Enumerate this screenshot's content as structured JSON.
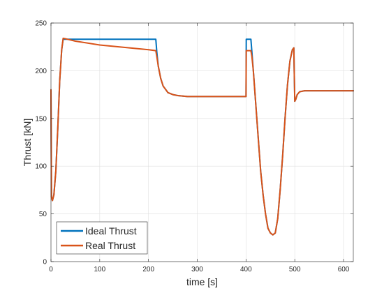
{
  "chart_data": {
    "type": "line",
    "title": "",
    "xlabel": "time [s]",
    "ylabel": "Thrust [kN]",
    "xlim": [
      0,
      620
    ],
    "ylim": [
      0,
      250
    ],
    "xticks": [
      0,
      100,
      200,
      300,
      400,
      500,
      600
    ],
    "yticks": [
      0,
      50,
      100,
      150,
      200,
      250
    ],
    "grid": true,
    "legend_position": "bottom-left",
    "series": [
      {
        "name": "Ideal Thrust",
        "color": "#0072BD",
        "x": [
          0,
          1,
          3,
          6,
          10,
          14,
          18,
          22,
          25,
          26,
          50,
          100,
          150,
          200,
          215,
          217,
          220,
          225,
          230,
          240,
          250,
          260,
          280,
          300,
          350,
          399,
          400,
          400.5,
          410,
          412,
          415,
          420,
          425,
          430,
          435,
          440,
          445,
          450,
          455,
          460,
          465,
          470,
          475,
          480,
          485,
          490,
          495,
          498,
          500,
          502,
          505,
          510,
          520,
          540,
          560,
          580,
          600,
          620
        ],
        "y": [
          180,
          68,
          64,
          70,
          95,
          140,
          190,
          222,
          233,
          233,
          233,
          233,
          233,
          233,
          233,
          220,
          205,
          192,
          184,
          177,
          175,
          174,
          173,
          173,
          173,
          173,
          173,
          233,
          233,
          220,
          200,
          165,
          130,
          95,
          70,
          50,
          35,
          30,
          28,
          30,
          45,
          75,
          110,
          150,
          185,
          210,
          222,
          224,
          168,
          170,
          175,
          178,
          179,
          179,
          179,
          179,
          179,
          179
        ]
      },
      {
        "name": "Real Thrust",
        "color": "#D95319",
        "x": [
          0,
          1,
          3,
          6,
          10,
          14,
          18,
          22,
          25,
          30,
          50,
          100,
          150,
          200,
          215,
          217,
          220,
          225,
          230,
          240,
          250,
          260,
          280,
          300,
          350,
          399,
          400,
          400.5,
          410,
          412,
          415,
          420,
          425,
          430,
          435,
          440,
          445,
          450,
          455,
          460,
          465,
          470,
          475,
          480,
          485,
          490,
          495,
          498,
          500,
          502,
          505,
          510,
          520,
          540,
          560,
          580,
          600,
          620
        ],
        "y": [
          180,
          68,
          64,
          70,
          95,
          140,
          190,
          222,
          234,
          233.5,
          231,
          227,
          224.5,
          222,
          221,
          215,
          205,
          192,
          184,
          177,
          175,
          174,
          173,
          173,
          173,
          173,
          173,
          221,
          221,
          215,
          200,
          165,
          130,
          95,
          70,
          50,
          35,
          30,
          28,
          30,
          45,
          75,
          110,
          150,
          185,
          210,
          222,
          224,
          168,
          170,
          175,
          178,
          179,
          179,
          179,
          179,
          179,
          179
        ]
      }
    ]
  }
}
